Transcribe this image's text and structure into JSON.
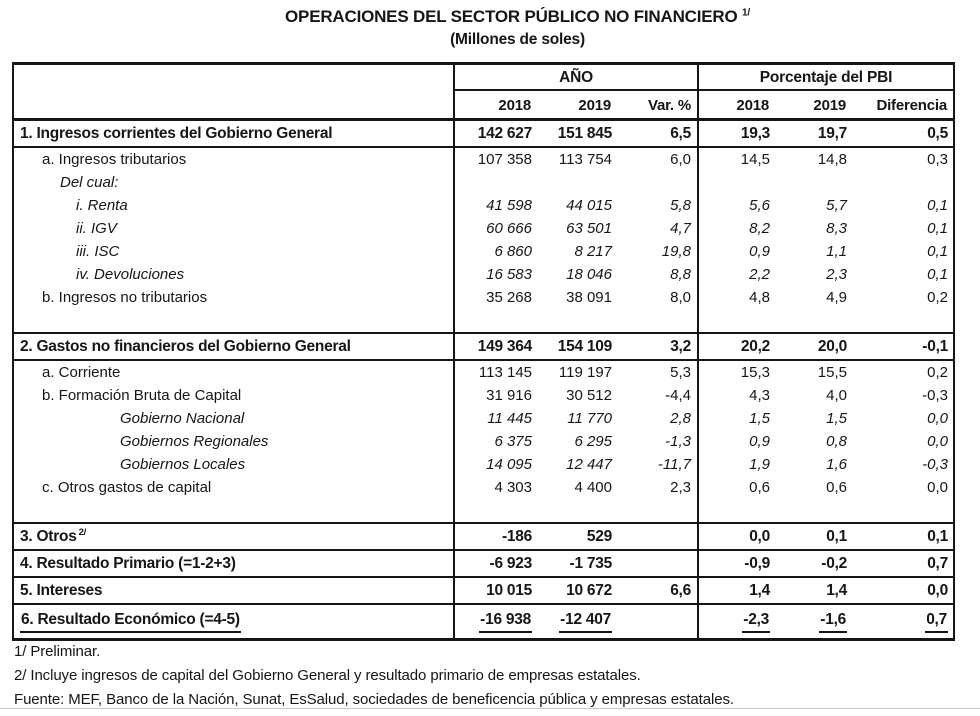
{
  "header": {
    "title": "OPERACIONES DEL SECTOR PÚBLICO NO FINANCIERO",
    "title_sup": "1/",
    "subtitle": "(Millones de soles)"
  },
  "table": {
    "groups": {
      "year": "AÑO",
      "pbi": "Porcentaje del PBI"
    },
    "columns": [
      "2018",
      "2019",
      "Var. %",
      "2018",
      "2019",
      "Diferencia"
    ],
    "rows": [
      {
        "label": "1. Ingresos corrientes del Gobierno General",
        "style": "section",
        "border_bottom": true,
        "values": [
          "142 627",
          "151 845",
          "6,5",
          "19,3",
          "19,7",
          "0,5"
        ]
      },
      {
        "label": "a. Ingresos tributarios",
        "style": "sub",
        "values": [
          "107 358",
          "113 754",
          "6,0",
          "14,5",
          "14,8",
          "0,3"
        ]
      },
      {
        "label": "Del cual:",
        "style": "note",
        "values": [
          "",
          "",
          "",
          "",
          "",
          ""
        ]
      },
      {
        "label": "i. Renta",
        "style": "item",
        "values": [
          "41 598",
          "44 015",
          "5,8",
          "5,6",
          "5,7",
          "0,1"
        ]
      },
      {
        "label": "ii. IGV",
        "style": "item",
        "values": [
          "60 666",
          "63 501",
          "4,7",
          "8,2",
          "8,3",
          "0,1"
        ]
      },
      {
        "label": "iii. ISC",
        "style": "item",
        "values": [
          "6 860",
          "8 217",
          "19,8",
          "0,9",
          "1,1",
          "0,1"
        ]
      },
      {
        "label": "iv. Devoluciones",
        "style": "item",
        "values": [
          "16 583",
          "18 046",
          "8,8",
          "2,2",
          "2,3",
          "0,1"
        ]
      },
      {
        "label": "b. Ingresos no tributarios",
        "style": "sub",
        "values": [
          "35 268",
          "38 091",
          "8,0",
          "4,8",
          "4,9",
          "0,2"
        ]
      },
      {
        "label": "",
        "style": "gap",
        "border_bottom": true,
        "values": [
          "",
          "",
          "",
          "",
          "",
          ""
        ]
      },
      {
        "label": "2. Gastos no financieros del Gobierno General",
        "style": "section",
        "border_bottom": true,
        "values": [
          "149 364",
          "154 109",
          "3,2",
          "20,2",
          "20,0",
          "-0,1"
        ]
      },
      {
        "label": "a. Corriente",
        "style": "sub",
        "values": [
          "113 145",
          "119 197",
          "5,3",
          "15,3",
          "15,5",
          "0,2"
        ]
      },
      {
        "label": "b. Formación Bruta de Capital",
        "style": "sub",
        "values": [
          "31 916",
          "30 512",
          "-4,4",
          "4,3",
          "4,0",
          "-0,3"
        ]
      },
      {
        "label": "Gobierno Nacional",
        "style": "deep",
        "values": [
          "11 445",
          "11 770",
          "2,8",
          "1,5",
          "1,5",
          "0,0"
        ]
      },
      {
        "label": "Gobiernos Regionales",
        "style": "deep",
        "values": [
          "6 375",
          "6 295",
          "-1,3",
          "0,9",
          "0,8",
          "0,0"
        ]
      },
      {
        "label": "Gobiernos Locales",
        "style": "deep",
        "values": [
          "14 095",
          "12 447",
          "-11,7",
          "1,9",
          "1,6",
          "-0,3"
        ]
      },
      {
        "label": "c. Otros gastos de capital",
        "style": "sub",
        "values": [
          "4 303",
          "4 400",
          "2,3",
          "0,6",
          "0,6",
          "0,0"
        ]
      },
      {
        "label": "",
        "style": "gap",
        "border_bottom": true,
        "values": [
          "",
          "",
          "",
          "",
          "",
          ""
        ]
      },
      {
        "label": "3. Otros",
        "label_sup": "2/",
        "style": "section",
        "border_bottom": true,
        "values": [
          "-186",
          "529",
          "",
          "0,0",
          "0,1",
          "0,1"
        ]
      },
      {
        "label": "4. Resultado Primario (=1-2+3)",
        "style": "section",
        "border_bottom": true,
        "values": [
          "-6 923",
          "-1 735",
          "",
          "-0,9",
          "-0,2",
          "0,7"
        ]
      },
      {
        "label": "5. Intereses",
        "style": "section",
        "border_bottom": true,
        "values": [
          "10 015",
          "10 672",
          "6,6",
          "1,4",
          "1,4",
          "0,0"
        ]
      },
      {
        "label": "6. Resultado Económico (=4-5)",
        "style": "section",
        "total": true,
        "underline": true,
        "values": [
          "-16 938",
          "-12 407",
          "",
          "-2,3",
          "-1,6",
          "0,7"
        ]
      }
    ]
  },
  "footnotes": [
    "1/ Preliminar.",
    "2/ Incluye ingresos de capital del Gobierno General y resultado primario de empresas estatales.",
    "Fuente: MEF, Banco de la Nación, Sunat, EsSalud, sociedades de beneficencia pública y empresas estatales."
  ]
}
